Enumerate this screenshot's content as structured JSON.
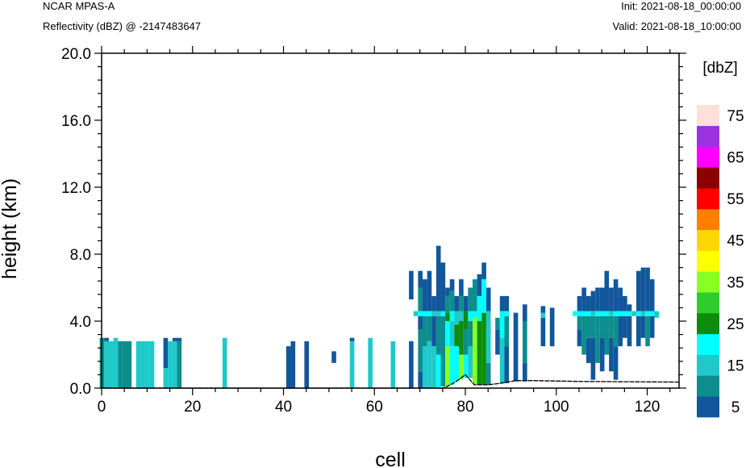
{
  "header": {
    "model": "NCAR MPAS-A",
    "field": "Reflectivity (dBZ) @ -2147483647",
    "init": "Init: 2021-08-18_00:00:00",
    "valid": "Valid: 2021-08-18_10:00:00"
  },
  "chart_data": {
    "type": "heatmap",
    "title": "",
    "xlabel": "cell",
    "ylabel": "height (km)",
    "xlim": [
      0,
      127
    ],
    "ylim": [
      0,
      20
    ],
    "x_ticks": [
      0,
      20,
      40,
      60,
      80,
      100,
      120
    ],
    "x_tick_labels": [
      "0",
      "20",
      "40",
      "60",
      "80",
      "100",
      "120"
    ],
    "y_ticks": [
      0,
      4,
      8,
      12,
      16,
      20
    ],
    "y_tick_labels": [
      "0.0",
      "4.0",
      "8.0",
      "12.0",
      "16.0",
      "20.0"
    ],
    "colorbar": {
      "unit_label": "[dbZ]",
      "levels": [
        5,
        10,
        15,
        20,
        25,
        30,
        35,
        40,
        45,
        50,
        55,
        60,
        65,
        70,
        75
      ],
      "labeled_levels": [
        "5",
        "15",
        "25",
        "35",
        "45",
        "55",
        "65",
        "75"
      ],
      "colors": [
        "#12579b",
        "#0d8d8d",
        "#1ec9c9",
        "#00ffff",
        "#0d8c0d",
        "#2ecc2e",
        "#88ff22",
        "#ffff00",
        "#ffd700",
        "#ff7f00",
        "#ff0000",
        "#8b0000",
        "#ff00ff",
        "#9a32e0",
        "#ffe0d8"
      ]
    },
    "columns": [
      {
        "x": 0,
        "bands": [
          [
            0,
            3.0,
            10
          ]
        ]
      },
      {
        "x": 1,
        "bands": [
          [
            0,
            2.8,
            15
          ],
          [
            2.8,
            3.0,
            5
          ]
        ]
      },
      {
        "x": 2,
        "bands": [
          [
            0,
            2.8,
            15
          ]
        ]
      },
      {
        "x": 3,
        "bands": [
          [
            0,
            2.8,
            15
          ],
          [
            2.8,
            3.0,
            15
          ]
        ]
      },
      {
        "x": 4,
        "bands": [
          [
            0,
            2.8,
            10
          ]
        ]
      },
      {
        "x": 5,
        "bands": [
          [
            0,
            2.8,
            10
          ]
        ]
      },
      {
        "x": 6,
        "bands": [
          [
            0,
            2.8,
            10
          ]
        ]
      },
      {
        "x": 8,
        "bands": [
          [
            0,
            2.8,
            15
          ]
        ]
      },
      {
        "x": 9,
        "bands": [
          [
            0,
            2.8,
            15
          ]
        ]
      },
      {
        "x": 10,
        "bands": [
          [
            0,
            2.8,
            15
          ]
        ]
      },
      {
        "x": 11,
        "bands": [
          [
            0,
            2.8,
            15
          ]
        ]
      },
      {
        "x": 14,
        "bands": [
          [
            0,
            1.2,
            15
          ],
          [
            1.2,
            3.0,
            5
          ]
        ]
      },
      {
        "x": 15,
        "bands": [
          [
            0,
            2.8,
            15
          ]
        ]
      },
      {
        "x": 16,
        "bands": [
          [
            0,
            2.8,
            15
          ],
          [
            2.8,
            3.0,
            5
          ]
        ]
      },
      {
        "x": 17,
        "bands": [
          [
            0,
            2.8,
            10
          ],
          [
            2.8,
            3.0,
            5
          ]
        ]
      },
      {
        "x": 27,
        "bands": [
          [
            0,
            3.0,
            15
          ]
        ]
      },
      {
        "x": 41,
        "bands": [
          [
            0,
            2.5,
            5
          ]
        ]
      },
      {
        "x": 42,
        "bands": [
          [
            0,
            2.8,
            5
          ]
        ]
      },
      {
        "x": 45,
        "bands": [
          [
            0,
            2.8,
            5
          ]
        ]
      },
      {
        "x": 51,
        "bands": [
          [
            1.5,
            2.2,
            5
          ]
        ]
      },
      {
        "x": 55,
        "bands": [
          [
            0,
            2.8,
            15
          ],
          [
            2.8,
            3.0,
            5
          ]
        ]
      },
      {
        "x": 59,
        "bands": [
          [
            0,
            3.0,
            15
          ]
        ]
      },
      {
        "x": 64,
        "bands": [
          [
            0,
            2.8,
            15
          ]
        ]
      },
      {
        "x": 68,
        "bands": [
          [
            0,
            2.8,
            5
          ],
          [
            5.3,
            7.0,
            5
          ]
        ]
      },
      {
        "x": 69,
        "bands": [
          [
            4.3,
            4.6,
            15
          ]
        ]
      },
      {
        "x": 70,
        "bands": [
          [
            0,
            1.0,
            5
          ],
          [
            1.0,
            3.5,
            10
          ],
          [
            3.5,
            4.3,
            5
          ],
          [
            4.3,
            4.6,
            20
          ],
          [
            4.6,
            6.0,
            10
          ],
          [
            6.0,
            7.0,
            5
          ]
        ]
      },
      {
        "x": 71,
        "bands": [
          [
            0,
            2.5,
            15
          ],
          [
            2.5,
            4.3,
            10
          ],
          [
            4.3,
            4.6,
            20
          ],
          [
            4.6,
            6.5,
            5
          ]
        ]
      },
      {
        "x": 72,
        "bands": [
          [
            0,
            2.8,
            15
          ],
          [
            2.8,
            4.3,
            10
          ],
          [
            4.3,
            4.6,
            20
          ],
          [
            4.6,
            7.0,
            5
          ]
        ]
      },
      {
        "x": 73,
        "bands": [
          [
            0,
            2.5,
            15
          ],
          [
            2.5,
            4.3,
            5
          ],
          [
            4.3,
            4.6,
            15
          ],
          [
            4.6,
            5.5,
            5
          ]
        ]
      },
      {
        "x": 74,
        "bands": [
          [
            0,
            2.0,
            20
          ],
          [
            2.0,
            4.3,
            10
          ],
          [
            4.3,
            4.6,
            15
          ],
          [
            4.6,
            8.5,
            5
          ]
        ]
      },
      {
        "x": 75,
        "bands": [
          [
            0.1,
            4.3,
            10
          ],
          [
            4.3,
            4.6,
            20
          ],
          [
            4.6,
            7.5,
            5
          ]
        ]
      },
      {
        "x": 76,
        "bands": [
          [
            0.1,
            2.5,
            35
          ],
          [
            2.5,
            4.0,
            20
          ],
          [
            4.0,
            4.5,
            25
          ],
          [
            4.5,
            5.5,
            10
          ],
          [
            5.5,
            6.0,
            5
          ]
        ]
      },
      {
        "x": 77,
        "bands": [
          [
            0.2,
            2.5,
            20
          ],
          [
            2.5,
            4.0,
            15
          ],
          [
            4.0,
            4.6,
            20
          ],
          [
            4.6,
            5.8,
            10
          ],
          [
            5.8,
            6.5,
            5
          ]
        ]
      },
      {
        "x": 78,
        "bands": [
          [
            0.4,
            2.5,
            20
          ],
          [
            2.5,
            3.8,
            25
          ],
          [
            3.8,
            4.6,
            15
          ],
          [
            4.6,
            5.5,
            5
          ]
        ]
      },
      {
        "x": 79,
        "bands": [
          [
            0.5,
            2.0,
            35
          ],
          [
            2.0,
            4.0,
            25
          ],
          [
            4.0,
            4.6,
            15
          ],
          [
            4.6,
            5.5,
            10
          ],
          [
            5.5,
            6.5,
            5
          ]
        ]
      },
      {
        "x": 80,
        "bands": [
          [
            0.6,
            2.0,
            20
          ],
          [
            2.0,
            3.5,
            10
          ],
          [
            3.5,
            4.6,
            25
          ],
          [
            4.6,
            5.5,
            5
          ]
        ]
      },
      {
        "x": 81,
        "bands": [
          [
            0.6,
            2.5,
            15
          ],
          [
            2.5,
            4.0,
            10
          ],
          [
            4.0,
            4.6,
            20
          ],
          [
            4.6,
            6.0,
            10
          ]
        ]
      },
      {
        "x": 82,
        "bands": [
          [
            0.2,
            4.2,
            35
          ],
          [
            4.2,
            4.6,
            20
          ],
          [
            4.6,
            6.5,
            10
          ]
        ]
      },
      {
        "x": 83,
        "bands": [
          [
            0.2,
            4.0,
            25
          ],
          [
            4.0,
            5.5,
            20
          ],
          [
            5.5,
            6.8,
            5
          ]
        ]
      },
      {
        "x": 84,
        "bands": [
          [
            0.2,
            4.5,
            25
          ],
          [
            4.5,
            6.5,
            20
          ],
          [
            6.5,
            7.5,
            5
          ]
        ]
      },
      {
        "x": 85,
        "bands": [
          [
            0.2,
            1.5,
            10
          ],
          [
            1.5,
            4.6,
            15
          ],
          [
            4.6,
            6.0,
            5
          ]
        ]
      },
      {
        "x": 87,
        "bands": [
          [
            2.0,
            3.5,
            5
          ],
          [
            3.5,
            4.2,
            10
          ]
        ]
      },
      {
        "x": 88,
        "bands": [
          [
            0.3,
            3.0,
            15
          ],
          [
            3.0,
            4.6,
            20
          ],
          [
            4.6,
            5.5,
            5
          ]
        ]
      },
      {
        "x": 89,
        "bands": [
          [
            0.3,
            2.5,
            5
          ],
          [
            2.5,
            4.3,
            10
          ],
          [
            4.3,
            4.6,
            20
          ],
          [
            4.6,
            5.5,
            5
          ]
        ]
      },
      {
        "x": 91,
        "bands": [
          [
            0.4,
            4.5,
            5
          ]
        ]
      },
      {
        "x": 93,
        "bands": [
          [
            0.4,
            1.5,
            5
          ],
          [
            1.5,
            4.0,
            10
          ],
          [
            4.0,
            5.0,
            5
          ]
        ]
      },
      {
        "x": 97,
        "bands": [
          [
            2.5,
            4.2,
            5
          ],
          [
            4.2,
            4.5,
            15
          ],
          [
            4.5,
            4.9,
            5
          ]
        ]
      },
      {
        "x": 99,
        "bands": [
          [
            2.5,
            4.8,
            5
          ]
        ]
      },
      {
        "x": 104,
        "bands": [
          [
            4.3,
            4.6,
            20
          ]
        ]
      },
      {
        "x": 105,
        "bands": [
          [
            2.5,
            3.5,
            5
          ],
          [
            3.5,
            4.3,
            10
          ],
          [
            4.3,
            4.6,
            20
          ],
          [
            4.6,
            5.5,
            5
          ]
        ]
      },
      {
        "x": 106,
        "bands": [
          [
            2.0,
            4.3,
            10
          ],
          [
            4.3,
            4.6,
            20
          ],
          [
            4.6,
            6.0,
            5
          ]
        ]
      },
      {
        "x": 107,
        "bands": [
          [
            1.5,
            3.0,
            5
          ],
          [
            3.0,
            4.3,
            10
          ],
          [
            4.3,
            4.6,
            20
          ],
          [
            4.6,
            5.5,
            5
          ]
        ]
      },
      {
        "x": 108,
        "bands": [
          [
            0.5,
            3.0,
            5
          ],
          [
            3.0,
            4.3,
            10
          ],
          [
            4.3,
            4.6,
            15
          ],
          [
            4.6,
            5.8,
            5
          ]
        ]
      },
      {
        "x": 109,
        "bands": [
          [
            1.5,
            3.5,
            10
          ],
          [
            3.5,
            4.3,
            10
          ],
          [
            4.3,
            4.6,
            20
          ],
          [
            4.6,
            6.0,
            5
          ]
        ]
      },
      {
        "x": 110,
        "bands": [
          [
            1.0,
            3.0,
            5
          ],
          [
            3.0,
            4.3,
            10
          ],
          [
            4.3,
            4.6,
            20
          ],
          [
            4.6,
            6.0,
            5
          ]
        ]
      },
      {
        "x": 111,
        "bands": [
          [
            2.0,
            3.5,
            10
          ],
          [
            3.5,
            4.3,
            10
          ],
          [
            4.3,
            4.6,
            20
          ],
          [
            4.6,
            7.0,
            5
          ]
        ]
      },
      {
        "x": 112,
        "bands": [
          [
            1.0,
            3.0,
            5
          ],
          [
            3.0,
            4.3,
            10
          ],
          [
            4.3,
            4.6,
            15
          ],
          [
            4.6,
            6.0,
            5
          ]
        ]
      },
      {
        "x": 113,
        "bands": [
          [
            0.5,
            2.5,
            5
          ],
          [
            2.5,
            4.3,
            10
          ],
          [
            4.3,
            4.6,
            20
          ],
          [
            4.6,
            6.5,
            5
          ]
        ]
      },
      {
        "x": 114,
        "bands": [
          [
            2.5,
            4.3,
            5
          ],
          [
            4.3,
            4.6,
            20
          ],
          [
            4.6,
            6.0,
            5
          ]
        ]
      },
      {
        "x": 115,
        "bands": [
          [
            3.0,
            4.3,
            5
          ],
          [
            4.3,
            4.6,
            20
          ],
          [
            4.6,
            5.5,
            5
          ]
        ]
      },
      {
        "x": 116,
        "bands": [
          [
            2.5,
            4.3,
            5
          ],
          [
            4.3,
            4.6,
            20
          ],
          [
            4.6,
            5.0,
            5
          ]
        ]
      },
      {
        "x": 117,
        "bands": [
          [
            4.3,
            4.6,
            15
          ]
        ]
      },
      {
        "x": 118,
        "bands": [
          [
            2.5,
            4.3,
            5
          ],
          [
            4.3,
            4.6,
            20
          ],
          [
            4.6,
            7.0,
            5
          ]
        ]
      },
      {
        "x": 119,
        "bands": [
          [
            3.0,
            4.3,
            5
          ],
          [
            4.3,
            4.6,
            15
          ],
          [
            4.6,
            7.2,
            5
          ]
        ]
      },
      {
        "x": 120,
        "bands": [
          [
            2.5,
            4.3,
            10
          ],
          [
            4.3,
            4.6,
            20
          ],
          [
            4.6,
            7.2,
            5
          ]
        ]
      },
      {
        "x": 121,
        "bands": [
          [
            3.0,
            4.3,
            5
          ],
          [
            4.3,
            4.6,
            20
          ],
          [
            4.6,
            6.5,
            5
          ]
        ]
      },
      {
        "x": 122,
        "bands": [
          [
            4.2,
            4.6,
            15
          ]
        ]
      }
    ],
    "terrain": [
      [
        0,
        0
      ],
      [
        75,
        0
      ],
      [
        76,
        0.1
      ],
      [
        78,
        0.4
      ],
      [
        80,
        0.8
      ],
      [
        82,
        0.2
      ],
      [
        85,
        0.2
      ],
      [
        88,
        0.3
      ],
      [
        91,
        0.45
      ],
      [
        95,
        0.45
      ],
      [
        105,
        0.4
      ],
      [
        115,
        0.38
      ],
      [
        127,
        0.36
      ]
    ]
  }
}
